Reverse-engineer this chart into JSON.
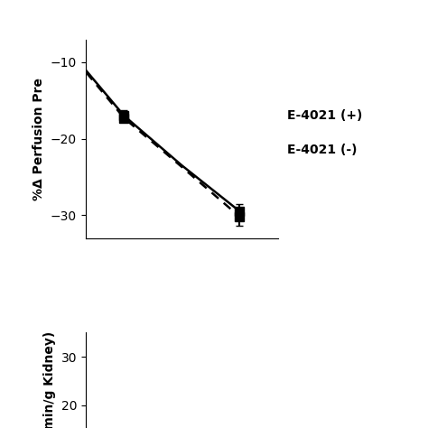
{
  "top_panel": {
    "ylabel": "%Δ Perfusion Pre",
    "ylim": [
      -33,
      -7
    ],
    "yticks": [
      -10,
      -20,
      -30
    ],
    "xlim": [
      0,
      5
    ],
    "series_plus": {
      "label": "E-4021 (+)",
      "x": [
        -0.5,
        1.0,
        2.5,
        4.0
      ],
      "y": [
        -8.0,
        -17.0,
        -23.5,
        -29.5
      ],
      "yerr": [
        0.0,
        0.7,
        0.0,
        0.9
      ],
      "linestyle": "solid",
      "marker": "s",
      "color": "black"
    },
    "series_minus": {
      "label": "E-4021 (-)",
      "x": [
        -0.5,
        1.0,
        2.5,
        4.0
      ],
      "y": [
        -8.2,
        -17.3,
        -23.7,
        -30.2
      ],
      "yerr": [
        0.0,
        0.5,
        0.0,
        1.2
      ],
      "linestyle": "dashed",
      "marker": "s",
      "color": "black"
    }
  },
  "bottom_panel": {
    "ylabel": "μol/min/g Kidney)",
    "ylim": [
      10,
      35
    ],
    "yticks": [
      20,
      30
    ],
    "xlim": [
      0,
      5
    ]
  },
  "background_color": "#ffffff",
  "label_fontsize": 10,
  "tick_fontsize": 10,
  "legend_fontsize": 10
}
